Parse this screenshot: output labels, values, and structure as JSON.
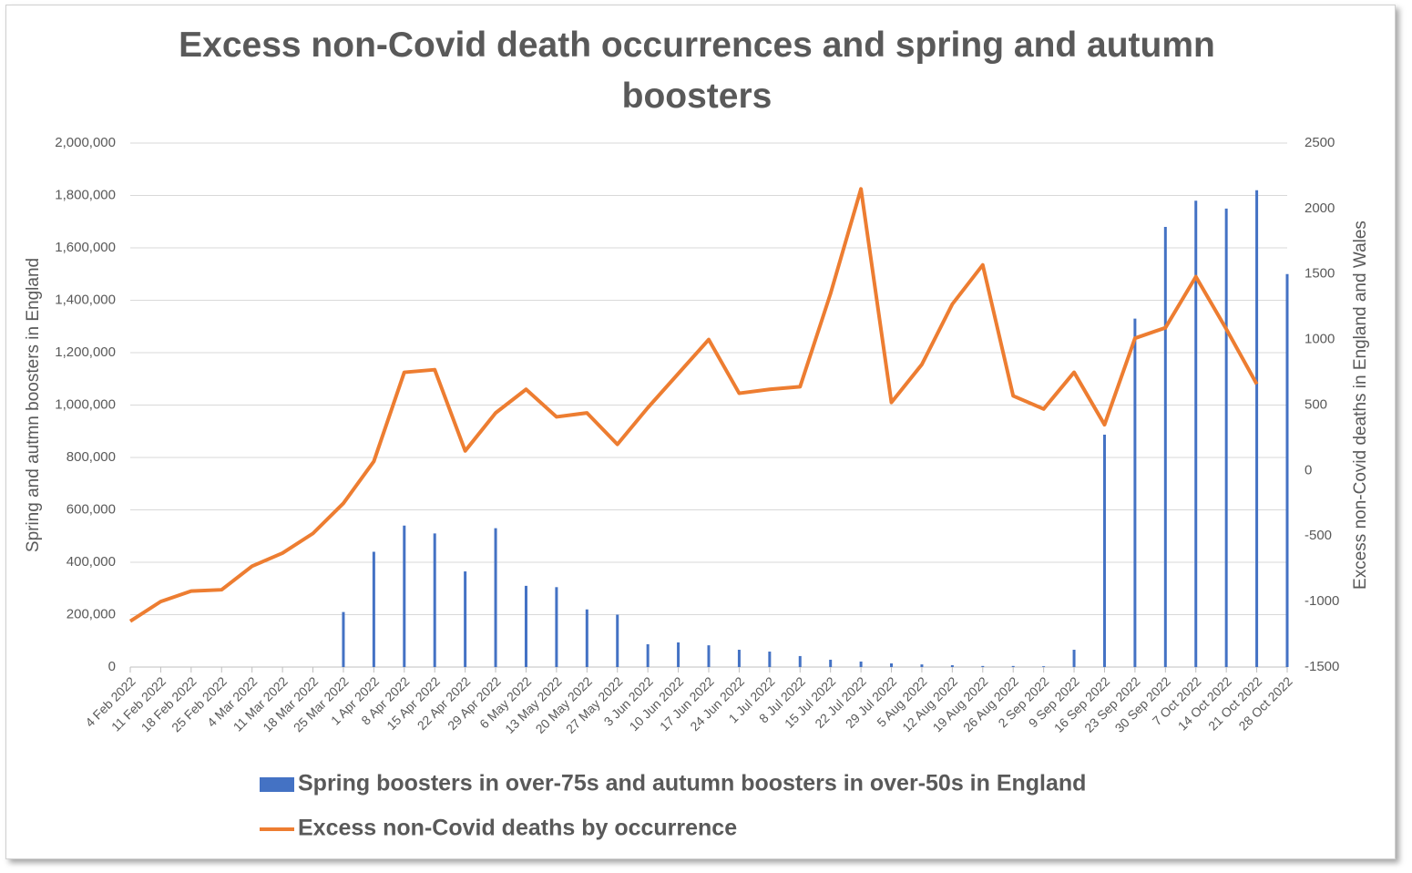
{
  "chart_data": {
    "type": "bar_line",
    "title": "Excess non-Covid death occurrences and spring and autumn boosters",
    "y_label": "Spring and autmn boosters in England",
    "y2_label": "Excess non-Covid deaths in England and Wales",
    "categories": [
      "4 Feb 2022",
      "11 Feb 2022",
      "18 Feb 2022",
      "25 Feb 2022",
      "4 Mar 2022",
      "11 Mar 2022",
      "18 Mar 2022",
      "25 Mar 2022",
      "1 Apr 2022",
      "8 Apr 2022",
      "15 Apr 2022",
      "22 Apr 2022",
      "29 Apr 2022",
      "6 May 2022",
      "13 May 2022",
      "20 May 2022",
      "27 May 2022",
      "3 Jun 2022",
      "10 Jun 2022",
      "17 Jun 2022",
      "24 Jun 2022",
      "1 Jul 2022",
      "8 Jul 2022",
      "15 Jul 2022",
      "22 Jul 2022",
      "29 Jul 2022",
      "5 Aug 2022",
      "12 Aug 2022",
      "19 Aug 2022",
      "26 Aug 2022",
      "2 Sep 2022",
      "9 Sep 2022",
      "16 Sep 2022",
      "23 Sep 2022",
      "30 Sep 2022",
      "7 Oct 2022",
      "14 Oct 2022",
      "21 Oct 2022",
      "28 Oct 2022"
    ],
    "series": [
      {
        "name": "Spring boosters in over-75s and autumn boosters in over-50s in England",
        "type": "bar",
        "color": "#4472c4",
        "values": [
          0,
          0,
          0,
          0,
          0,
          0,
          0,
          210000,
          440000,
          540000,
          510000,
          365000,
          530000,
          310000,
          305000,
          220000,
          200000,
          87000,
          94000,
          83000,
          66000,
          59000,
          42000,
          28000,
          21000,
          14000,
          10000,
          7000,
          4000,
          4000,
          3000,
          66000,
          887000,
          1330000,
          1680000,
          1780000,
          1750000,
          1820000,
          1500000
        ]
      },
      {
        "name": "Excess non-Covid deaths by occurrence",
        "type": "line",
        "color": "#ed7d31",
        "axis": "y2",
        "values": [
          -1150,
          -1000,
          -920,
          -910,
          -730,
          -630,
          -480,
          -250,
          70,
          750,
          770,
          150,
          440,
          620,
          410,
          440,
          200,
          480,
          740,
          1000,
          590,
          620,
          640,
          1350,
          2150,
          520,
          810,
          1270,
          1570,
          570,
          470,
          750,
          350,
          1010,
          1090,
          1480,
          1080,
          660,
          null
        ]
      }
    ],
    "ylim": [
      0,
      2000000
    ],
    "yticks": [
      0,
      {
        "value": 200000,
        "label": "200,000"
      },
      {
        "value": 400000,
        "label": "400,000"
      },
      {
        "value": 600000,
        "label": "600,000"
      },
      {
        "value": 800000,
        "label": "800,000"
      },
      {
        "value": 1000000,
        "label": "1,000,000"
      },
      {
        "value": 1200000,
        "label": "1,200,000"
      },
      {
        "value": 1400000,
        "label": "1,400,000"
      },
      {
        "value": 1600000,
        "label": "1,600,000"
      },
      {
        "value": 1800000,
        "label": "1,800,000"
      },
      {
        "value": 2000000,
        "label": "2,000,000"
      }
    ],
    "y2lim": [
      -1500,
      2500
    ],
    "y2ticks": [
      -1500,
      -1000,
      -500,
      0,
      500,
      1000,
      1500,
      2000,
      2500
    ],
    "grid": true,
    "legend": "bottom"
  }
}
